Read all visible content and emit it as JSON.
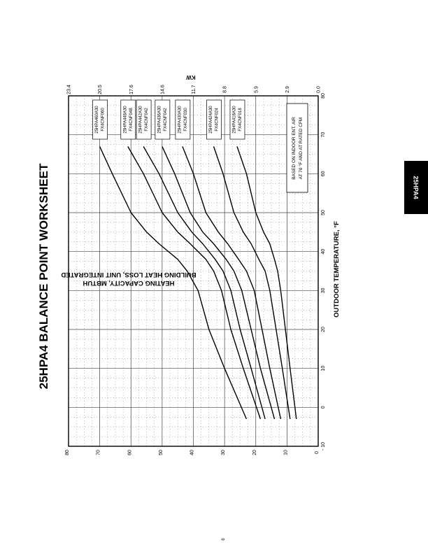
{
  "side_tab": "25HPA4",
  "page_number": "9",
  "chart_data": {
    "type": "line",
    "title": "25HPA4 BALANCE POINT WORKSHEET",
    "xlabel": "OUTDOOR TEMPERATURE, °F",
    "ylabel_line1": "BUILDING HEAT LOSS, UNIT INTEGRATED",
    "ylabel_line2": "HEATING CAPACITY, MBTUH",
    "kw_label": "KW",
    "xlim": [
      -10,
      80
    ],
    "ylim": [
      0,
      80
    ],
    "x_ticks": [
      -10,
      0,
      10,
      20,
      30,
      40,
      50,
      60,
      70,
      80
    ],
    "x_tick_labels": [
      "- 10",
      "0",
      "10",
      "20",
      "30",
      "40",
      "50",
      "60",
      "70",
      "80"
    ],
    "y_ticks": [
      0,
      10,
      20,
      30,
      40,
      50,
      60,
      70,
      80
    ],
    "kw_ticks": [
      "0.0",
      "2.9",
      "5.9",
      "8.8",
      "11.7",
      "14.6",
      "17.6",
      "20.5",
      "23.4"
    ],
    "grid": true,
    "note_line1": "BASED ON INDOOR ENT. AIR",
    "note_line2": "AT 70 °F AND AT RATED CFM",
    "series": [
      {
        "name": "25HPA460A30",
        "name2": "FX4CNF060",
        "x": [
          -3,
          10,
          20,
          30,
          35,
          38,
          42,
          45,
          50,
          60,
          67
        ],
        "y": [
          23,
          30,
          35,
          38.5,
          42,
          45,
          51,
          55,
          60,
          66,
          70
        ]
      },
      {
        "name": "25HPA448A30",
        "name2": "FX4CNF048",
        "x": [
          -3,
          10,
          20,
          30,
          35,
          38,
          42,
          45,
          50,
          60,
          67
        ],
        "y": [
          18.5,
          24,
          28,
          31,
          33.5,
          36,
          41,
          45,
          50,
          56,
          61
        ]
      },
      {
        "name": "25HPA442A30",
        "name2": "FX4CNF042",
        "x": [
          -3,
          10,
          20,
          30,
          35,
          38,
          42,
          45,
          50,
          60,
          67
        ],
        "y": [
          17,
          21.5,
          25,
          28,
          30.5,
          33,
          37,
          40.5,
          45,
          51,
          56
        ]
      },
      {
        "name": "25HPA436A30",
        "name2": "FX4CNF042",
        "x": [
          -3,
          10,
          20,
          30,
          35,
          38,
          42,
          45,
          50,
          60,
          67
        ],
        "y": [
          14,
          18.5,
          21.5,
          24.5,
          27,
          29.5,
          33.5,
          37,
          41,
          46,
          50
        ]
      },
      {
        "name": "25HPA430A30",
        "name2": "FX4CNF030",
        "x": [
          -3,
          10,
          20,
          30,
          35,
          38,
          42,
          45,
          50,
          60,
          67
        ],
        "y": [
          12,
          15.5,
          18,
          20.5,
          23,
          25.5,
          29,
          32,
          36,
          40,
          43.5
        ]
      },
      {
        "name": "25HPA424A30",
        "name2": "FX4CNF024",
        "x": [
          -3,
          10,
          20,
          30,
          35,
          38,
          42,
          45,
          50,
          60,
          67
        ],
        "y": [
          9,
          11.5,
          13.5,
          15.5,
          17,
          19,
          21.5,
          24,
          27,
          30.5,
          33.5
        ]
      },
      {
        "name": "25HPA418A30",
        "name2": "FX4CNF018",
        "x": [
          -3,
          10,
          20,
          30,
          35,
          38,
          42,
          45,
          50,
          60,
          67
        ],
        "y": [
          7,
          9,
          10.5,
          12,
          13,
          14,
          15.5,
          17.5,
          20,
          23,
          26
        ]
      }
    ]
  }
}
